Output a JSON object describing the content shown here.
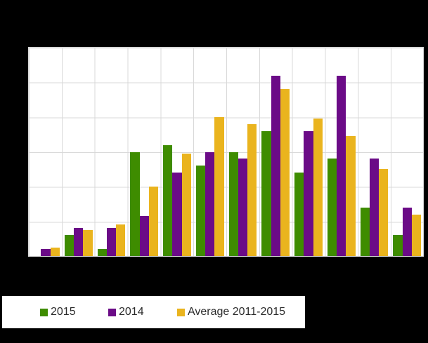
{
  "page": {
    "background_color": "#000000",
    "plot_background_color": "#ffffff",
    "gridline_color": "#d9d9d9"
  },
  "legend": {
    "items": [
      {
        "label": "2015",
        "color": "#3e8c00",
        "swatch_icon": "green-square-swatch"
      },
      {
        "label": "2014",
        "color": "#6b0b87",
        "swatch_icon": "purple-square-swatch"
      },
      {
        "label": "Average 2011-2015",
        "color": "#eab41e",
        "swatch_icon": "yellow-square-swatch"
      }
    ]
  },
  "chart_data": {
    "type": "bar",
    "title": "",
    "xlabel": "",
    "ylabel": "",
    "x_axis_labels_visible": false,
    "y_axis_labels_visible": false,
    "categories": [
      "",
      "",
      "",
      "",
      "",
      "",
      "",
      "",
      "",
      "",
      "",
      ""
    ],
    "group_count": 12,
    "series": [
      {
        "name": "2015",
        "color": "#3e8c00",
        "values": [
          0,
          60,
          20,
          300,
          320,
          260,
          300,
          360,
          240,
          280,
          140,
          60
        ]
      },
      {
        "name": "2014",
        "color": "#6b0b87",
        "values": [
          20,
          80,
          80,
          115,
          240,
          300,
          280,
          520,
          360,
          520,
          280,
          140
        ]
      },
      {
        "name": "Average 2011-2015",
        "color": "#eab41e",
        "values": [
          25,
          75,
          90,
          200,
          295,
          400,
          380,
          480,
          395,
          345,
          250,
          120
        ]
      }
    ],
    "ylim": [
      0,
      600
    ],
    "grid": {
      "horizontal_divisions": 6,
      "vertical_divisions": 12,
      "grid_on": true
    },
    "legend_position": "bottom-left"
  }
}
